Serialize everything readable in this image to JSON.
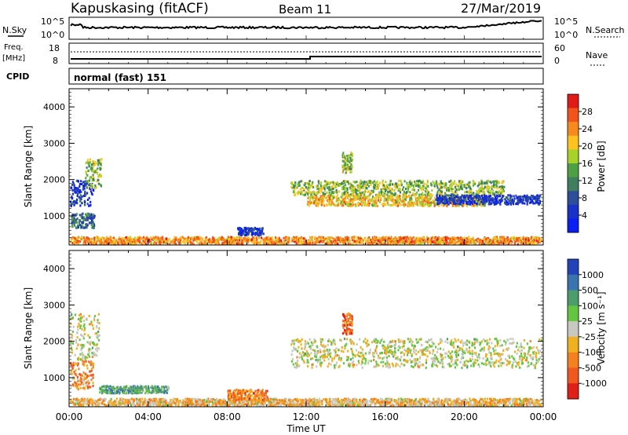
{
  "header": {
    "station": "Kapuskasing (fitACF)",
    "beam": "Beam 11",
    "date": "27/Mar/2019"
  },
  "status_panels": {
    "nsky_label": "N.Sky",
    "nsky_ticks": [
      "10^5",
      "10^0"
    ],
    "nsearch_label": "N.Search",
    "nsearch_ticks": [
      "10^5",
      "10^0"
    ],
    "freq_label": "Freq.",
    "freq_unit": "[MHz]",
    "freq_ticks": [
      "18",
      "8"
    ],
    "nave_label": "Nave",
    "nave_ticks": [
      "60",
      "0"
    ],
    "cpid_label": "CPID",
    "cpid_value": "normal (fast) 151"
  },
  "colorbars": {
    "power": {
      "label": "Power [dB]",
      "ticks": [
        "28",
        "24",
        "20",
        "16",
        "12",
        "8",
        "4"
      ],
      "colors": [
        "#e11b17",
        "#f2541c",
        "#f58a1e",
        "#ffc21e",
        "#a7d22a",
        "#4f9f44",
        "#3f7f60",
        "#2e4d9b",
        "#1931c8",
        "#0a1ff2"
      ]
    },
    "velocity": {
      "label": "Velocity [m s⁻¹]",
      "ticks": [
        "1000",
        "500",
        "100",
        "25",
        "-25",
        "-100",
        "-500",
        "-1000"
      ],
      "colors": [
        "#2244b8",
        "#3a74b0",
        "#4c9c6c",
        "#64c640",
        "#c8c8c0",
        "#f0b020",
        "#f58020",
        "#f05820",
        "#e02018"
      ]
    }
  },
  "chart_data": [
    {
      "type": "heatmap",
      "title": "Power",
      "ylabel": "Slant Range [km]",
      "ylim": [
        200,
        4500
      ],
      "yticks": [
        1000,
        2000,
        3000,
        4000
      ],
      "xlim": [
        0,
        24
      ],
      "colorbar": "Power [dB]",
      "regions": [
        {
          "t0": 0.0,
          "t1": 1.2,
          "r0": 1300,
          "r1": 2000,
          "level": 0.85
        },
        {
          "t0": 0.1,
          "t1": 1.3,
          "r0": 700,
          "r1": 1100,
          "level": 0.7
        },
        {
          "t0": 0.8,
          "t1": 1.6,
          "r0": 1800,
          "r1": 2600,
          "level": 0.5
        },
        {
          "t0": 0.0,
          "t1": 24.0,
          "r0": 250,
          "r1": 450,
          "level": 0.25
        },
        {
          "t0": 8.5,
          "t1": 9.8,
          "r0": 500,
          "r1": 700,
          "level": 0.85
        },
        {
          "t0": 11.2,
          "t1": 22.0,
          "r0": 1600,
          "r1": 2000,
          "level": 0.5
        },
        {
          "t0": 12.0,
          "t1": 21.0,
          "r0": 1300,
          "r1": 1600,
          "level": 0.35
        },
        {
          "t0": 18.5,
          "t1": 24.0,
          "r0": 1350,
          "r1": 1600,
          "level": 0.85
        },
        {
          "t0": 13.8,
          "t1": 14.3,
          "r0": 2200,
          "r1": 2800,
          "level": 0.45
        }
      ]
    },
    {
      "type": "heatmap",
      "title": "Velocity",
      "ylabel": "Slant Range [km]",
      "xlabel": "Time UT",
      "ylim": [
        200,
        4500
      ],
      "yticks": [
        1000,
        2000,
        3000,
        4000
      ],
      "xlim": [
        0,
        24
      ],
      "xticks": [
        "00:00",
        "04:00",
        "08:00",
        "12:00",
        "16:00",
        "20:00",
        "00:00"
      ],
      "colorbar": "Velocity [m s⁻¹]",
      "regions": [
        {
          "t0": 0.0,
          "t1": 1.5,
          "r0": 1500,
          "r1": 2800,
          "level": 0.5
        },
        {
          "t0": 0.0,
          "t1": 1.2,
          "r0": 700,
          "r1": 1500,
          "level": 0.7
        },
        {
          "t0": 1.5,
          "t1": 5.0,
          "r0": 600,
          "r1": 800,
          "level": 0.3
        },
        {
          "t0": 0.0,
          "t1": 24.0,
          "r0": 250,
          "r1": 450,
          "level": 0.6
        },
        {
          "t0": 8.0,
          "t1": 10.0,
          "r0": 400,
          "r1": 700,
          "level": 0.75
        },
        {
          "t0": 11.2,
          "t1": 24.0,
          "r0": 1300,
          "r1": 2100,
          "level": 0.5
        },
        {
          "t0": 13.8,
          "t1": 14.3,
          "r0": 2200,
          "r1": 2800,
          "level": 0.8
        }
      ]
    }
  ]
}
